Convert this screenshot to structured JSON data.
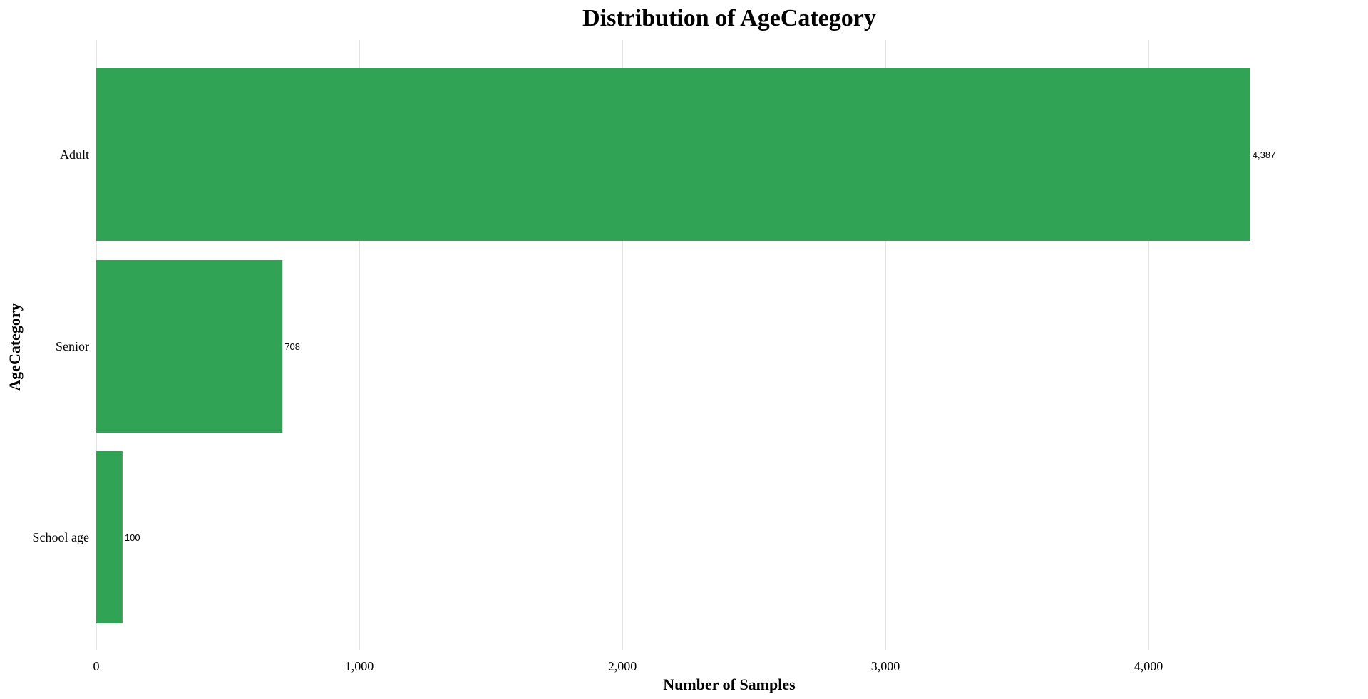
{
  "chart_data": {
    "type": "bar",
    "orientation": "horizontal",
    "title": "Distribution of AgeCategory",
    "xlabel": "Number of Samples",
    "ylabel": "AgeCategory",
    "categories": [
      "Adult",
      "Senior",
      "School age"
    ],
    "values": [
      4387,
      708,
      100
    ],
    "value_labels": [
      "4,387",
      "708",
      "100"
    ],
    "xlim": [
      0,
      4750
    ],
    "x_ticks": [
      0,
      1000,
      2000,
      3000,
      4000
    ],
    "x_tick_labels": [
      "0",
      "1,000",
      "2,000",
      "3,000",
      "4,000"
    ],
    "grid": "vertical",
    "bar_color": "#31a354"
  }
}
